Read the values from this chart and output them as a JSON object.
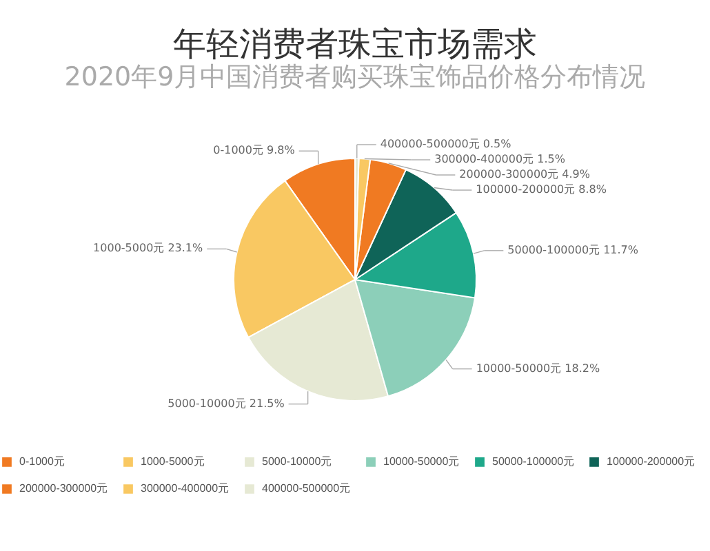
{
  "chart_data": {
    "type": "pie",
    "title": "年轻消费者珠宝市场需求",
    "subtitle": "2020年9月中国消费者购买珠宝饰品价格分布情况",
    "categories": [
      "0-1000元",
      "1000-5000元",
      "5000-10000元",
      "10000-50000元",
      "50000-100000元",
      "100000-200000元",
      "200000-300000元",
      "300000-400000元",
      "400000-500000元"
    ],
    "values": [
      9.8,
      23.1,
      21.5,
      18.2,
      11.7,
      8.8,
      4.9,
      1.5,
      0.5
    ],
    "value_labels": [
      "9.8%",
      "23.1%",
      "21.5%",
      "18.2%",
      "11.7%",
      "8.8%",
      "4.9%",
      "1.5%",
      "0.5%"
    ],
    "colors": [
      "#f07a22",
      "#f9c862",
      "#e6e9d4",
      "#8ccfb9",
      "#1ea88a",
      "#0f6458",
      "#f07a22",
      "#f9c862",
      "#e6e9d4"
    ],
    "legend": "bottom"
  }
}
